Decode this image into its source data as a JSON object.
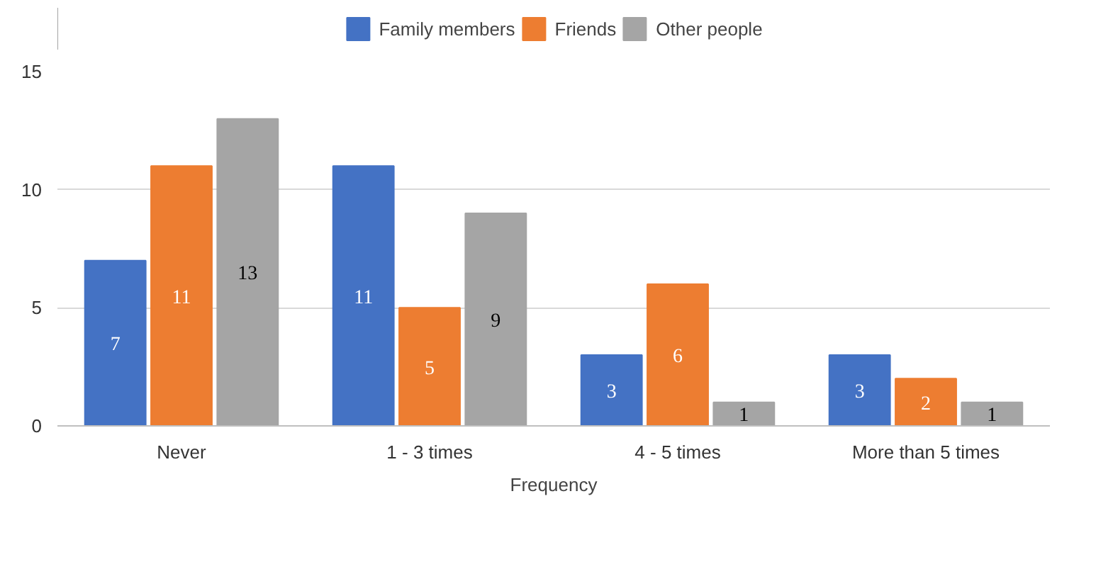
{
  "chart_data": {
    "type": "bar",
    "xlabel": "Frequency",
    "categories": [
      "Never",
      "1 - 3 times",
      "4 - 5 times",
      "More than 5 times"
    ],
    "series": [
      {
        "name": "Family members",
        "color": "#4472c4",
        "values": [
          7,
          11,
          3,
          3
        ]
      },
      {
        "name": "Friends",
        "color": "#ed7d31",
        "values": [
          11,
          5,
          6,
          2
        ]
      },
      {
        "name": "Other people",
        "color": "#a5a5a5",
        "values": [
          13,
          9,
          1,
          1
        ]
      }
    ],
    "ylim": [
      0,
      15
    ],
    "yticks": [
      0,
      5,
      10,
      15
    ],
    "grid": "y",
    "legend": "top",
    "data_labels": true
  }
}
